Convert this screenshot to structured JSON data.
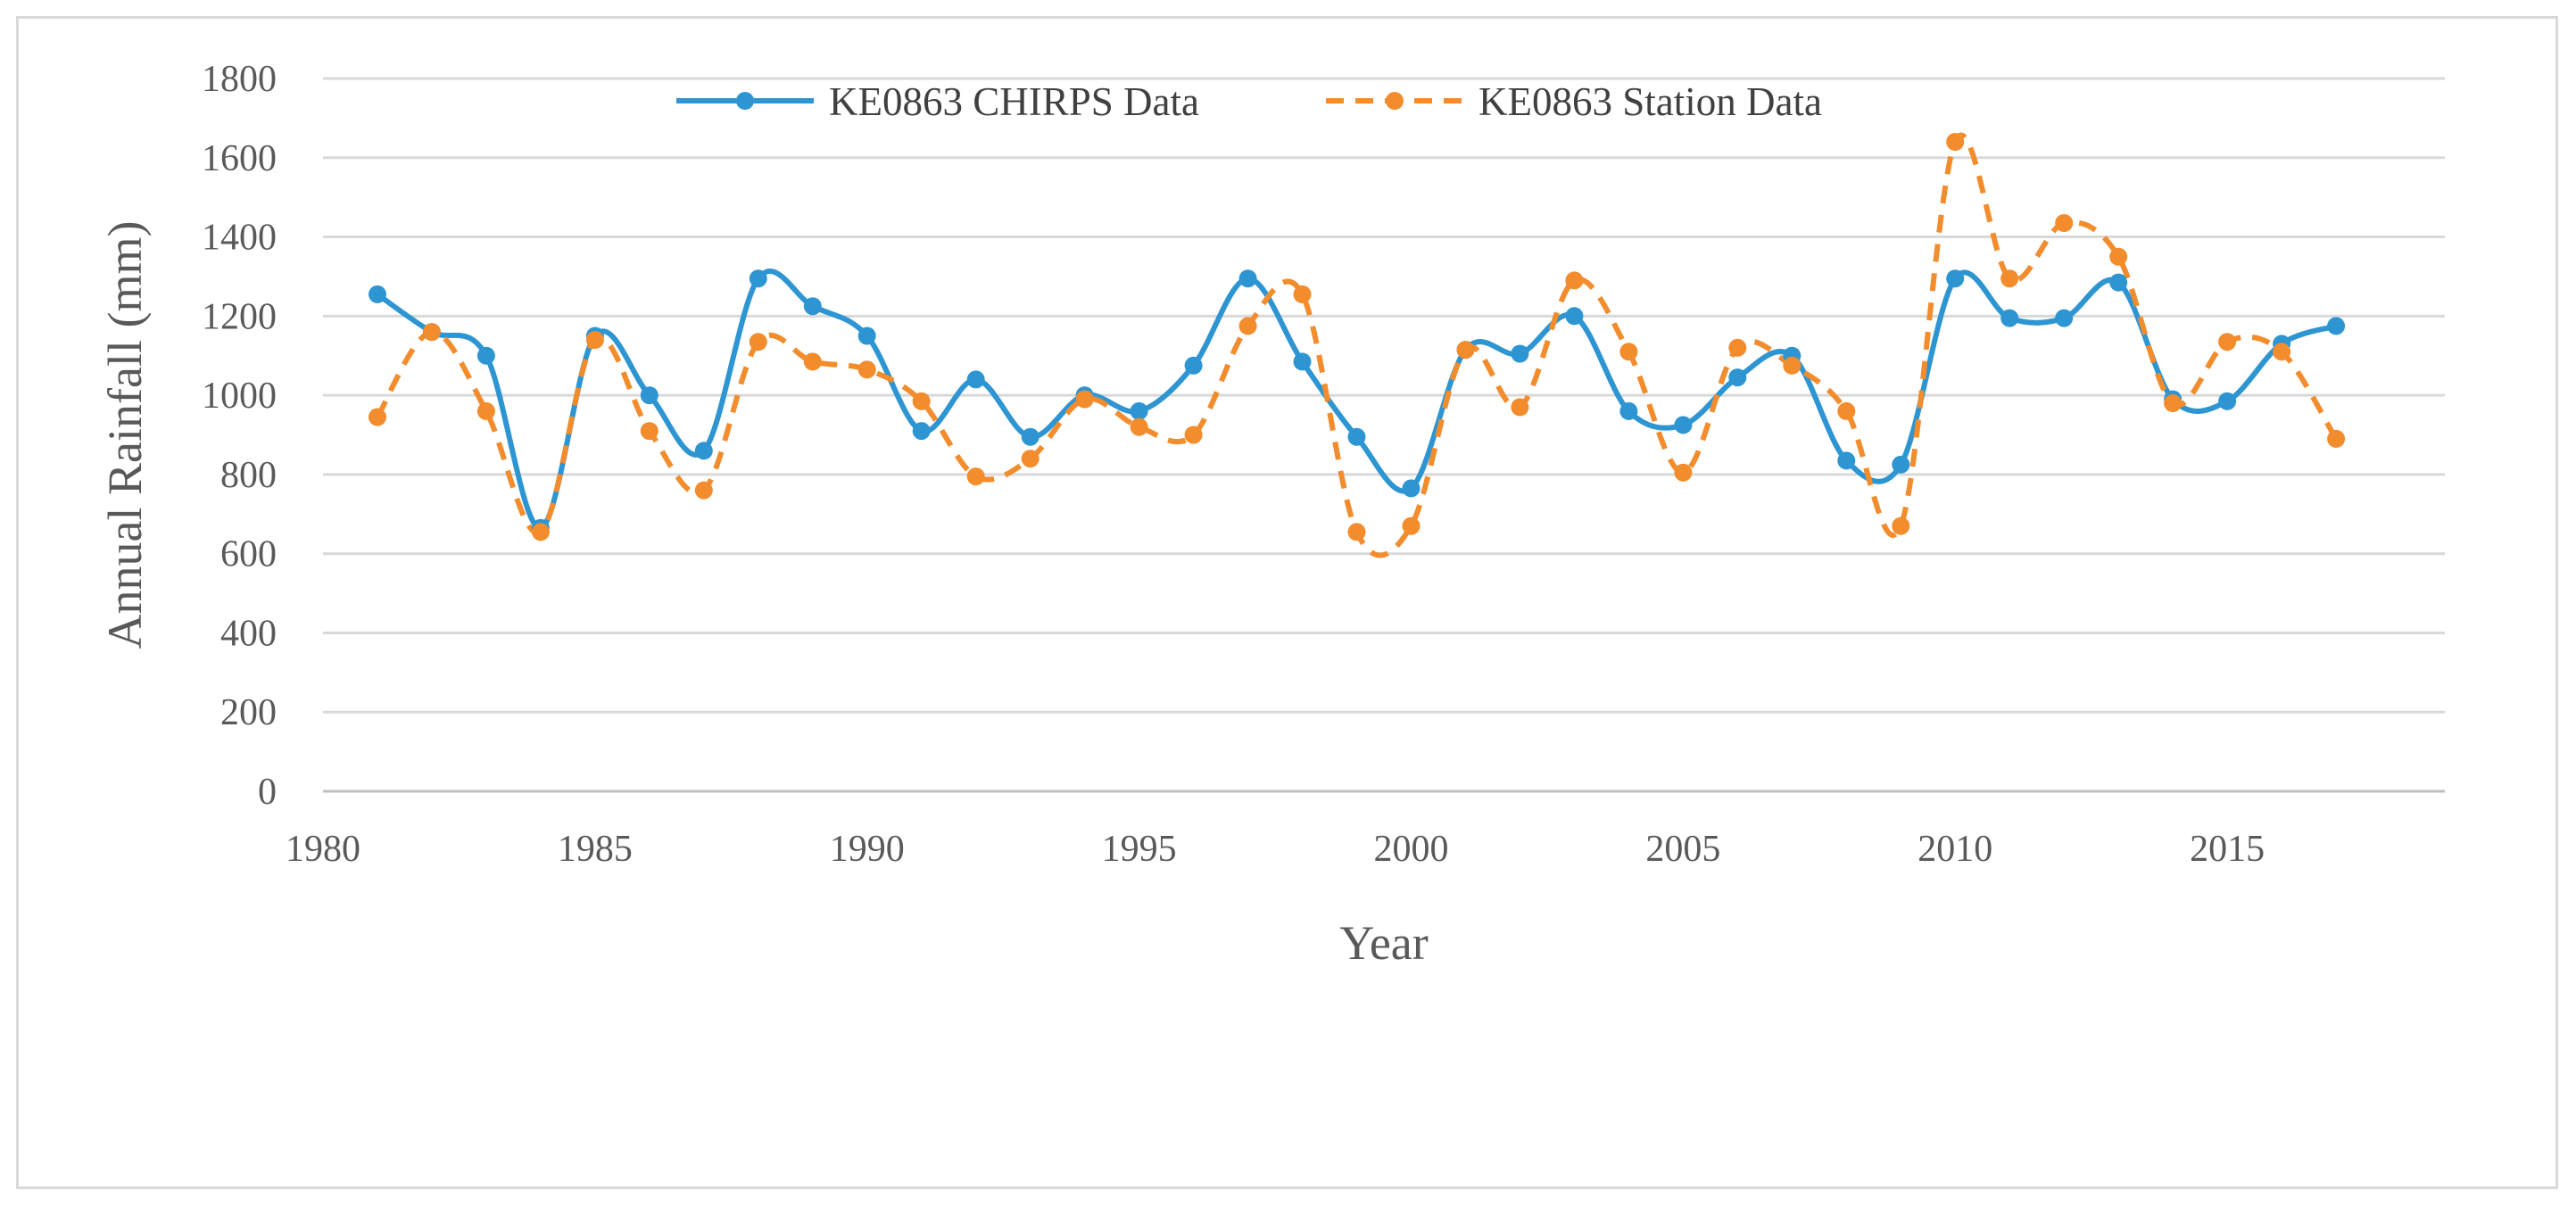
{
  "chart_data": {
    "type": "line",
    "title": "",
    "xlabel": "Year",
    "ylabel": "Annual Rainfall (mm)",
    "xlim": [
      1980,
      2019
    ],
    "ylim": [
      0,
      1800
    ],
    "xticks": [
      1980,
      1985,
      1990,
      1995,
      2000,
      2005,
      2010,
      2015
    ],
    "yticks": [
      0,
      200,
      400,
      600,
      800,
      1000,
      1200,
      1400,
      1600,
      1800
    ],
    "grid": true,
    "legend_position": "top",
    "x": [
      1981,
      1982,
      1983,
      1984,
      1985,
      1986,
      1987,
      1988,
      1989,
      1990,
      1991,
      1992,
      1993,
      1994,
      1995,
      1996,
      1997,
      1998,
      1999,
      2000,
      2001,
      2002,
      2003,
      2004,
      2005,
      2006,
      2007,
      2008,
      2009,
      2010,
      2011,
      2012,
      2013,
      2014,
      2015,
      2016,
      2017
    ],
    "series": [
      {
        "name": "KE0863 CHIRPS Data",
        "color": "#2e95d3",
        "style": "solid",
        "values": [
          1255,
          1160,
          1100,
          665,
          1150,
          1000,
          860,
          1295,
          1225,
          1150,
          910,
          1040,
          895,
          1000,
          960,
          1075,
          1295,
          1085,
          895,
          765,
          1115,
          1105,
          1200,
          960,
          925,
          1045,
          1100,
          835,
          825,
          1295,
          1195,
          1195,
          1285,
          990,
          985,
          1130,
          1175
        ]
      },
      {
        "name": "KE0863 Station Data",
        "color": "#f28c2c",
        "style": "dashed",
        "values": [
          945,
          1160,
          960,
          655,
          1140,
          910,
          760,
          1135,
          1085,
          1065,
          985,
          795,
          840,
          990,
          920,
          900,
          1175,
          1255,
          655,
          670,
          1115,
          970,
          1290,
          1110,
          805,
          1120,
          1075,
          960,
          670,
          1640,
          1295,
          1435,
          1350,
          980,
          1135,
          1110,
          890
        ]
      }
    ]
  }
}
